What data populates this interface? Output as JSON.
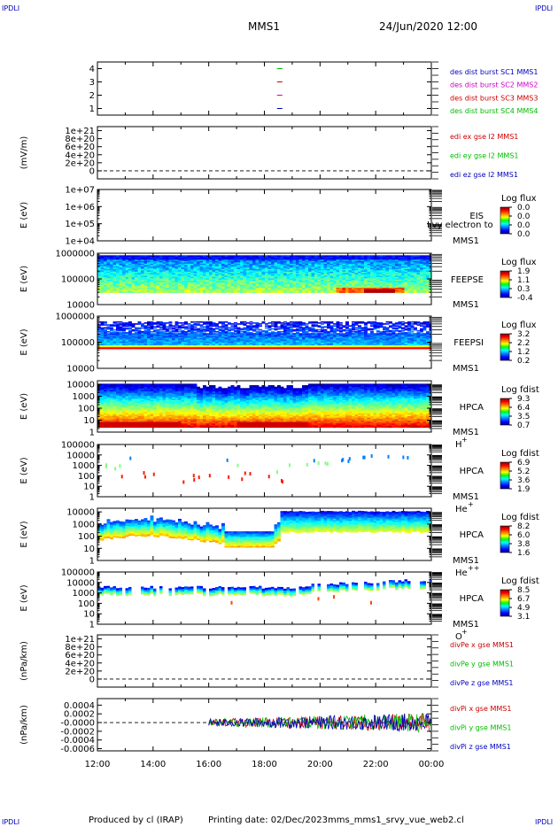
{
  "corner_label": "IPDLI",
  "header": {
    "spacecraft": "MMS1",
    "datetime": "24/Jun/2020 12:00"
  },
  "footer": {
    "producer": "Produced by cl (IRAP)",
    "printing": "Printing date: 02/Dec/2023",
    "file": "mms_mms1_srvy_vue_web2.cl"
  },
  "x_ticks": [
    "12:00",
    "14:00",
    "16:00",
    "18:00",
    "20:00",
    "22:00",
    "00:00"
  ],
  "colors": {
    "red": "#cc0000",
    "green": "#00bb00",
    "blue": "#0000bb",
    "magenta": "#cc00cc"
  },
  "panels": [
    {
      "id": "p1",
      "type": "line",
      "ylabel": "",
      "ylim": [
        0.5,
        4.5
      ],
      "ticks": [
        {
          "v": 4,
          "t": "4"
        },
        {
          "v": 3,
          "t": "3"
        },
        {
          "v": 2,
          "t": "2"
        },
        {
          "v": 1,
          "t": "1"
        }
      ],
      "legend": [
        {
          "text": "des dist burst SC1 MMS1",
          "color": "#0000bb"
        },
        {
          "text": "des dist burst SC2 MMS2",
          "color": "#cc00cc"
        },
        {
          "text": "des dist burst SC3 MMS3",
          "color": "#cc0000"
        },
        {
          "text": "des dist burst SC4 MMS4",
          "color": "#00bb00"
        }
      ],
      "marks": [
        {
          "t": 18.55,
          "y": 4,
          "color": "#00bb00"
        },
        {
          "t": 18.55,
          "y": 3,
          "color": "#cc0000"
        },
        {
          "t": 18.55,
          "y": 2,
          "color": "#cc00cc"
        },
        {
          "t": 18.55,
          "y": 1,
          "color": "#0000bb"
        }
      ]
    },
    {
      "id": "p2",
      "type": "line",
      "ylabel": "(mV/m)",
      "ylim": [
        -2e+20,
        1.1e+21
      ],
      "ticks": [
        {
          "v": 1e+21,
          "t": "1e+21"
        },
        {
          "v": 8e+20,
          "t": "8e+20"
        },
        {
          "v": 6e+20,
          "t": "6e+20"
        },
        {
          "v": 4e+20,
          "t": "4e+20"
        },
        {
          "v": 2e+20,
          "t": "2e+20"
        },
        {
          "v": 0,
          "t": "0"
        }
      ],
      "legend": [
        {
          "text": "edi ex gse l2 MMS1",
          "color": "#cc0000"
        },
        {
          "text": "edi ey gse l2 MMS1",
          "color": "#00bb00"
        },
        {
          "text": "edi ez gse l2 MMS1",
          "color": "#0000bb"
        }
      ],
      "zero": 0
    },
    {
      "id": "p3",
      "type": "spec",
      "ylabel": "E (eV)",
      "log": [
        4,
        7
      ],
      "ticks": [
        {
          "v": 7,
          "t": "1e+07"
        },
        {
          "v": 6,
          "t": "1e+06"
        },
        {
          "v": 5,
          "t": "1e+05"
        },
        {
          "v": 4,
          "t": "1e+04"
        }
      ],
      "labels": [
        "EIS",
        "MMS1"
      ],
      "overlay": "Lvy electron to",
      "cbar": {
        "title": "Log flux",
        "values": [
          "0.0",
          "0.0",
          "0.0",
          "0.0"
        ]
      },
      "empty": true
    },
    {
      "id": "p4",
      "type": "spec",
      "ylabel": "E (eV)",
      "log": [
        4,
        6
      ],
      "ticks": [
        {
          "v": 6,
          "t": "1000000"
        },
        {
          "v": 5,
          "t": "100000"
        },
        {
          "v": 4,
          "t": "10000"
        }
      ],
      "labels": [
        "FEEPSE",
        "MMS1"
      ],
      "cbar": {
        "title": "Log flux",
        "values": [
          "1.9",
          "1.1",
          "0.3",
          "-0.4"
        ]
      },
      "t0": 12,
      "lo": 4.47,
      "hi": 5.92,
      "style": "feepse"
    },
    {
      "id": "p5",
      "type": "spec",
      "ylabel": "E (eV)",
      "log": [
        4,
        6
      ],
      "ticks": [
        {
          "v": 6,
          "t": "1000000"
        },
        {
          "v": 5,
          "t": "100000"
        },
        {
          "v": 4,
          "t": "10000"
        }
      ],
      "labels": [
        "FEEPSI",
        "MMS1"
      ],
      "cbar": {
        "title": "Log flux",
        "values": [
          "3.2",
          "2.2",
          "1.2",
          "0.2"
        ]
      },
      "t0": 12,
      "lo": 4.75,
      "hi": 5.8,
      "style": "feepsi"
    },
    {
      "id": "p6",
      "type": "spec",
      "ylabel": "E (eV)",
      "log": [
        0,
        4.3
      ],
      "ticks": [
        {
          "v": 4,
          "t": "10000"
        },
        {
          "v": 3,
          "t": "1000"
        },
        {
          "v": 2,
          "t": "100"
        },
        {
          "v": 1,
          "t": "10"
        },
        {
          "v": 0,
          "t": "1"
        }
      ],
      "labels": [
        "HPCA",
        "MMS1",
        "H",
        "+"
      ],
      "cbar": {
        "title": "Log fdist",
        "values": [
          "9.3",
          "6.4",
          "3.5",
          "0.7"
        ]
      },
      "t0": 12,
      "lo": 0.4,
      "hi": 4.05,
      "style": "hplus"
    },
    {
      "id": "p7",
      "type": "spec",
      "ylabel": "E (eV)",
      "log": [
        0,
        5
      ],
      "ticks": [
        {
          "v": 5,
          "t": "100000"
        },
        {
          "v": 4,
          "t": "10000"
        },
        {
          "v": 3,
          "t": "1000"
        },
        {
          "v": 2,
          "t": "100"
        },
        {
          "v": 1,
          "t": "10"
        },
        {
          "v": 0,
          "t": "1"
        }
      ],
      "labels": [
        "HPCA",
        "MMS1",
        "He",
        "+"
      ],
      "cbar": {
        "title": "Log fdist",
        "values": [
          "6.9",
          "5.2",
          "3.6",
          "1.9"
        ]
      },
      "t0": 12,
      "style": "heplus"
    },
    {
      "id": "p8",
      "type": "spec",
      "ylabel": "E (eV)",
      "log": [
        0,
        4.3
      ],
      "ticks": [
        {
          "v": 4,
          "t": "10000"
        },
        {
          "v": 3,
          "t": "1000"
        },
        {
          "v": 2,
          "t": "100"
        },
        {
          "v": 1,
          "t": "10"
        },
        {
          "v": 0,
          "t": "1"
        }
      ],
      "labels": [
        "HPCA",
        "MMS1",
        "He",
        "++"
      ],
      "cbar": {
        "title": "Log fdist",
        "values": [
          "8.2",
          "6.0",
          "3.8",
          "1.6"
        ]
      },
      "t0": 12,
      "style": "hepp"
    },
    {
      "id": "p9",
      "type": "spec",
      "ylabel": "E (eV)",
      "log": [
        0,
        5
      ],
      "ticks": [
        {
          "v": 5,
          "t": "100000"
        },
        {
          "v": 4,
          "t": "10000"
        },
        {
          "v": 3,
          "t": "1000"
        },
        {
          "v": 2,
          "t": "100"
        },
        {
          "v": 1,
          "t": "10"
        },
        {
          "v": 0,
          "t": "1"
        }
      ],
      "labels": [
        "HPCA",
        "MMS1",
        "O",
        "+"
      ],
      "cbar": {
        "title": "Log fdist",
        "values": [
          "8.5",
          "6.7",
          "4.9",
          "3.1"
        ]
      },
      "t0": 12,
      "style": "oplus"
    },
    {
      "id": "p10",
      "type": "line",
      "ylabel": "(nPa/km)",
      "ylim": [
        -2e+20,
        1.1e+21
      ],
      "ticks": [
        {
          "v": 1e+21,
          "t": "1e+21"
        },
        {
          "v": 8e+20,
          "t": "8e+20"
        },
        {
          "v": 6e+20,
          "t": "6e+20"
        },
        {
          "v": 4e+20,
          "t": "4e+20"
        },
        {
          "v": 2e+20,
          "t": "2e+20"
        },
        {
          "v": 0,
          "t": "0"
        }
      ],
      "legend": [
        {
          "text": "divPe x gse MMS1",
          "color": "#cc0000"
        },
        {
          "text": "divPe y gse MMS1",
          "color": "#00bb00"
        },
        {
          "text": "divPe z gse MMS1",
          "color": "#0000bb"
        }
      ],
      "zero": 0
    },
    {
      "id": "p11",
      "type": "line",
      "ylabel": "(nPa/km)",
      "ylim": [
        -0.00065,
        0.00055
      ],
      "ticks": [
        {
          "v": 0.0004,
          "t": "0.0004"
        },
        {
          "v": 0.0002,
          "t": "0.0002"
        },
        {
          "v": 0.0,
          "t": "-0.0000"
        },
        {
          "v": -0.0002,
          "t": "-0.0002"
        },
        {
          "v": -0.0004,
          "t": "-0.0004"
        },
        {
          "v": -0.0006,
          "t": "-0.0006"
        }
      ],
      "legend": [
        {
          "text": "divPi x gse MMS1",
          "color": "#cc0000"
        },
        {
          "text": "divPi y gse MMS1",
          "color": "#00bb00"
        },
        {
          "text": "divPi z gse MMS1",
          "color": "#0000bb"
        }
      ],
      "zero": 0,
      "noise_start": 16.0
    }
  ]
}
